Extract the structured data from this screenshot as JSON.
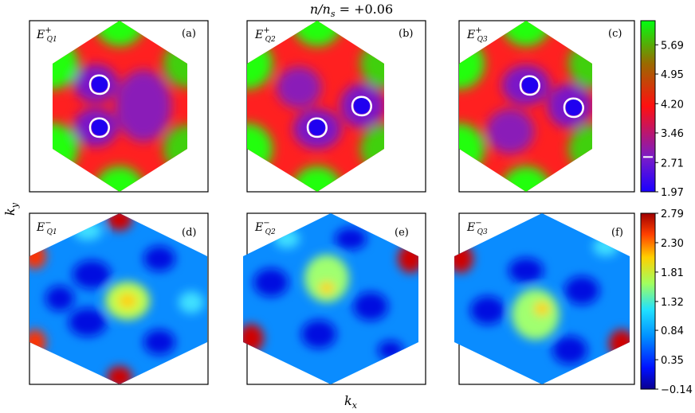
{
  "title": "n/n_s = +0.06",
  "xlabel": "k_x",
  "ylabel": "k_y",
  "panels": [
    {
      "tag": "(a)",
      "label_main": "E",
      "label_sup": "+",
      "label_sub": "Q1"
    },
    {
      "tag": "(b)",
      "label_main": "E",
      "label_sup": "+",
      "label_sub": "Q2"
    },
    {
      "tag": "(c)",
      "label_main": "E",
      "label_sup": "+",
      "label_sub": "Q3"
    },
    {
      "tag": "(d)",
      "label_main": "E",
      "label_sup": "−",
      "label_sub": "Q1"
    },
    {
      "tag": "(e)",
      "label_main": "E",
      "label_sup": "−",
      "label_sub": "Q2"
    },
    {
      "tag": "(f)",
      "label_main": "E",
      "label_sup": "−",
      "label_sub": "Q3"
    }
  ],
  "chart_data": [
    {
      "type": "heatmap",
      "row": "top",
      "panels": [
        "(a)",
        "(b)",
        "(c)"
      ],
      "colormap": "brg",
      "colormap_colors": [
        "#0000ff",
        "#ff0000",
        "#00ff00"
      ],
      "colorbar_ticks": [
        "1.97",
        "2.71",
        "3.46",
        "4.20",
        "4.95",
        "5.69"
      ],
      "colorbar_range": [
        1.97,
        6.3
      ],
      "fermi_level_marker": 2.85,
      "minima": [
        [
          {
            "x": -0.22,
            "y": 0.32
          },
          {
            "x": -0.22,
            "y": -0.32
          }
        ],
        [
          {
            "x": 0.35,
            "y": 0.02
          },
          {
            "x": -0.35,
            "y": -0.3
          }
        ],
        [
          {
            "x": -0.15,
            "y": 0.28
          },
          {
            "x": 0.4,
            "y": 0.05
          }
        ]
      ]
    },
    {
      "type": "heatmap",
      "row": "bottom",
      "panels": [
        "(d)",
        "(e)",
        "(f)"
      ],
      "colormap": "jet",
      "colormap_colors": [
        "#00007f",
        "#0000ff",
        "#007fff",
        "#00ffff",
        "#7fff7f",
        "#ffff00",
        "#ff7f00",
        "#ff0000",
        "#7f0000"
      ],
      "colorbar_ticks": [
        "−0.14",
        "0.35",
        "0.84",
        "1.32",
        "1.81",
        "2.30",
        "2.79"
      ],
      "colorbar_range": [
        -0.14,
        2.79
      ]
    }
  ]
}
